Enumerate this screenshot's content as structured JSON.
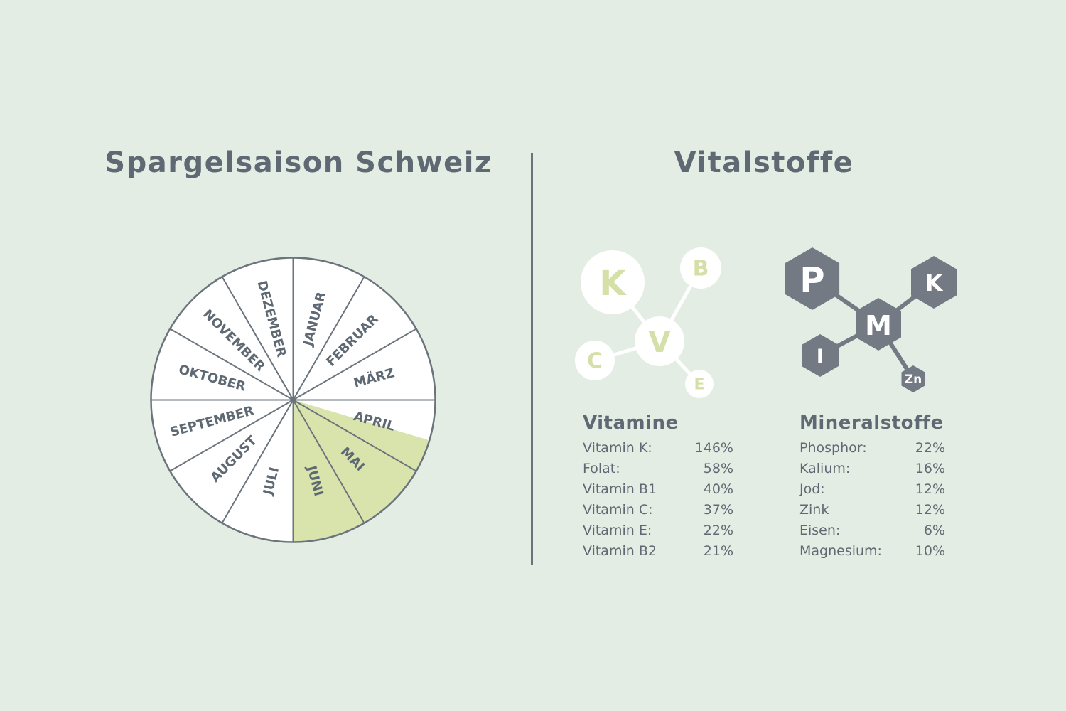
{
  "season": {
    "title": "Spargelsaison Schweiz",
    "months": [
      "JANUAR",
      "FEBRUAR",
      "MÄRZ",
      "APRIL",
      "MAI",
      "JUNI",
      "JULI",
      "AUGUST",
      "SEPTEMBER",
      "OKTOBER",
      "NOVEMBER",
      "DEZEMBER"
    ],
    "season_months": [
      "MAI",
      "JUNI"
    ],
    "season_starts_in": "APRIL",
    "season_start_fraction_of_april": 0.55,
    "colors": {
      "season_fill": "#d9e4ad",
      "off_season_fill": "#ffffff",
      "outline": "#6b747c"
    }
  },
  "vital": {
    "title": "Vitalstoffe",
    "vitamin_molecule": {
      "icon": "vitamin-molecule-icon",
      "nodes": [
        "K",
        "V",
        "B",
        "C",
        "E"
      ],
      "colors": {
        "node": "#ffffff",
        "letter": "#d5e0a8"
      }
    },
    "mineral_molecule": {
      "icon": "mineral-molecule-icon",
      "nodes": [
        "P",
        "M",
        "K",
        "I",
        "Zn"
      ],
      "colors": {
        "node": "#737a84",
        "letter": "#ffffff"
      }
    },
    "vitamine": {
      "heading": "Vitamine",
      "rows": [
        {
          "name": "Vitamin K:",
          "value": "146%"
        },
        {
          "name": "Folat:",
          "value": "58%"
        },
        {
          "name": "Vitamin B1",
          "value": "40%"
        },
        {
          "name": "Vitamin C:",
          "value": "37%"
        },
        {
          "name": "Vitamin E:",
          "value": "22%"
        },
        {
          "name": "Vitamin B2",
          "value": "21%"
        }
      ]
    },
    "mineralstoffe": {
      "heading": "Mineralstoffe",
      "rows": [
        {
          "name": "Phosphor:",
          "value": "22%"
        },
        {
          "name": "Kalium:",
          "value": "16%"
        },
        {
          "name": "Jod:",
          "value": "12%"
        },
        {
          "name": "Zink",
          "value": "12%"
        },
        {
          "name": "Eisen:",
          "value": "6%"
        },
        {
          "name": "Magnesium:",
          "value": "10%"
        }
      ]
    }
  }
}
